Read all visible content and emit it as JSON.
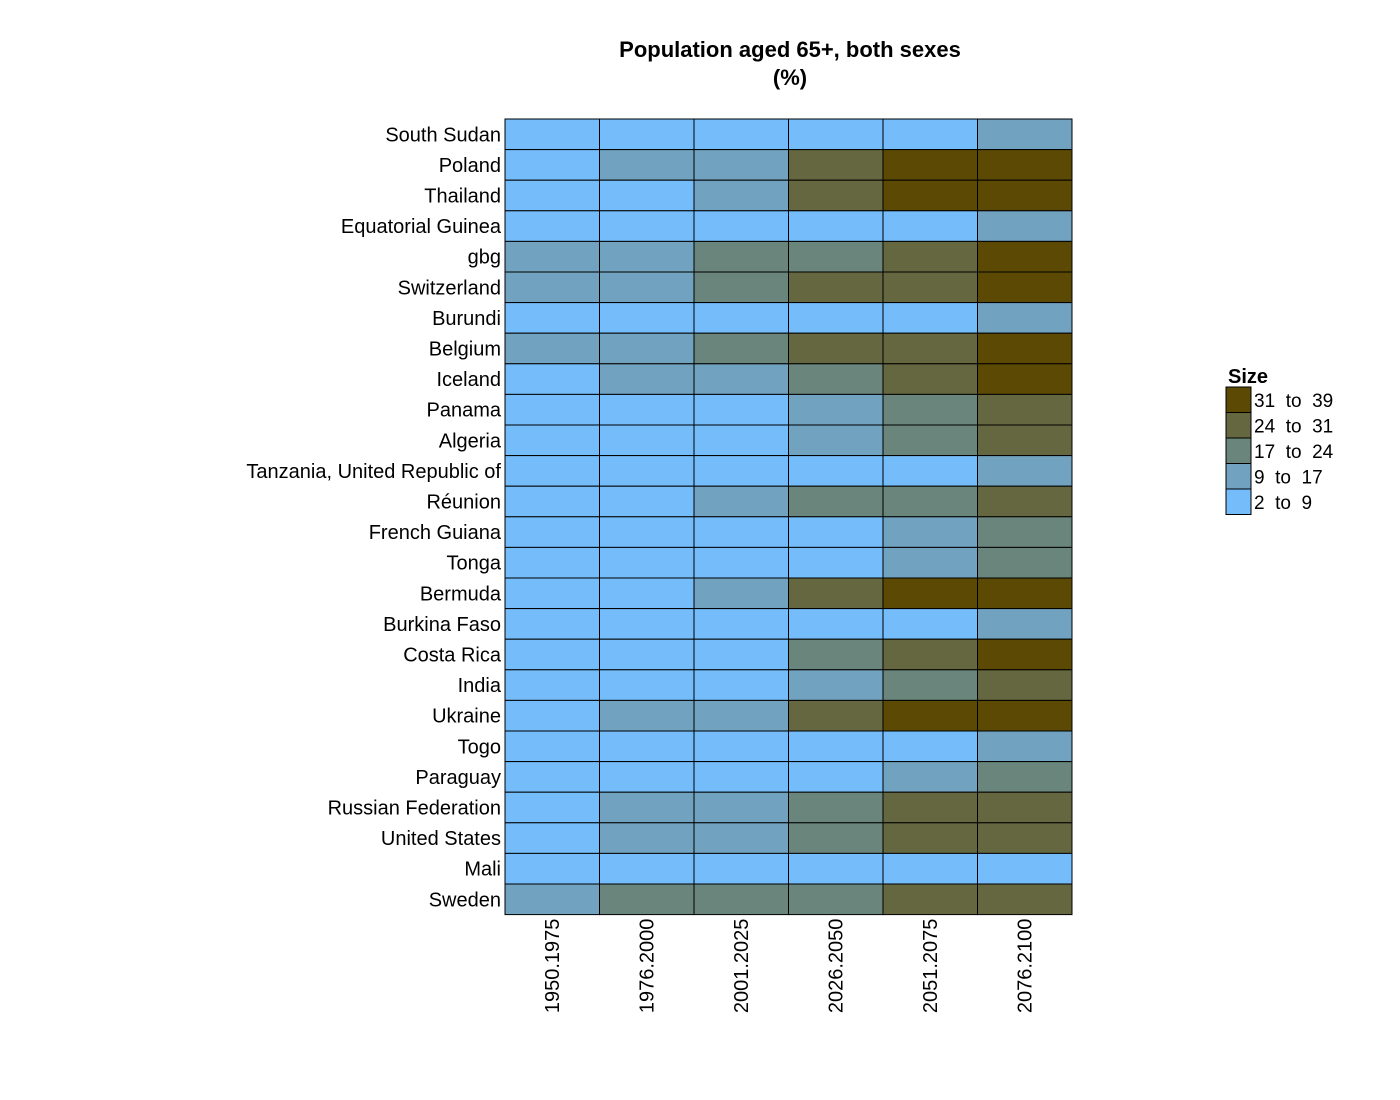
{
  "chart_data": {
    "type": "heatmap",
    "title": "Population aged 65+, both sexes",
    "subtitle": "(%)",
    "x": [
      "1950.1975",
      "1976.2000",
      "2001.2025",
      "2026.2050",
      "2051.2075",
      "2076.2100"
    ],
    "y": [
      "South Sudan",
      "Poland",
      "Thailand",
      "Equatorial Guinea",
      "gbg",
      "Switzerland",
      "Burundi",
      "Belgium",
      "Iceland",
      "Panama",
      "Algeria",
      "Tanzania, United Republic of",
      "Réunion",
      "French Guiana",
      "Tonga",
      "Bermuda",
      "Burkina Faso",
      "Costa Rica",
      "India",
      "Ukraine",
      "Togo",
      "Paraguay",
      "Russian Federation",
      "United States",
      "Mali",
      "Sweden"
    ],
    "bins": [
      {
        "label": "2  to  9",
        "color": "#74bdfa"
      },
      {
        "label": "9  to  17",
        "color": "#71a2c0"
      },
      {
        "label": "17  to  24",
        "color": "#69857c"
      },
      {
        "label": "24  to  31",
        "color": "#64673f"
      },
      {
        "label": "31  to  39",
        "color": "#5c4a04"
      }
    ],
    "bin_index": [
      [
        0,
        0,
        0,
        0,
        0,
        1
      ],
      [
        0,
        1,
        1,
        3,
        4,
        4
      ],
      [
        0,
        0,
        1,
        3,
        4,
        4
      ],
      [
        0,
        0,
        0,
        0,
        0,
        1
      ],
      [
        1,
        1,
        2,
        2,
        3,
        4
      ],
      [
        1,
        1,
        2,
        3,
        3,
        4
      ],
      [
        0,
        0,
        0,
        0,
        0,
        1
      ],
      [
        1,
        1,
        2,
        3,
        3,
        4
      ],
      [
        0,
        1,
        1,
        2,
        3,
        4
      ],
      [
        0,
        0,
        0,
        1,
        2,
        3
      ],
      [
        0,
        0,
        0,
        1,
        2,
        3
      ],
      [
        0,
        0,
        0,
        0,
        0,
        1
      ],
      [
        0,
        0,
        1,
        2,
        2,
        3
      ],
      [
        0,
        0,
        0,
        0,
        1,
        2
      ],
      [
        0,
        0,
        0,
        0,
        1,
        2
      ],
      [
        0,
        0,
        1,
        3,
        4,
        4
      ],
      [
        0,
        0,
        0,
        0,
        0,
        1
      ],
      [
        0,
        0,
        0,
        2,
        3,
        4
      ],
      [
        0,
        0,
        0,
        1,
        2,
        3
      ],
      [
        0,
        1,
        1,
        3,
        4,
        4
      ],
      [
        0,
        0,
        0,
        0,
        0,
        1
      ],
      [
        0,
        0,
        0,
        0,
        1,
        2
      ],
      [
        0,
        1,
        1,
        2,
        3,
        3
      ],
      [
        0,
        1,
        1,
        2,
        3,
        3
      ],
      [
        0,
        0,
        0,
        0,
        0,
        0
      ],
      [
        1,
        2,
        2,
        2,
        3,
        3
      ]
    ],
    "legend": {
      "title": "Size",
      "position": "right"
    },
    "grid": false
  }
}
